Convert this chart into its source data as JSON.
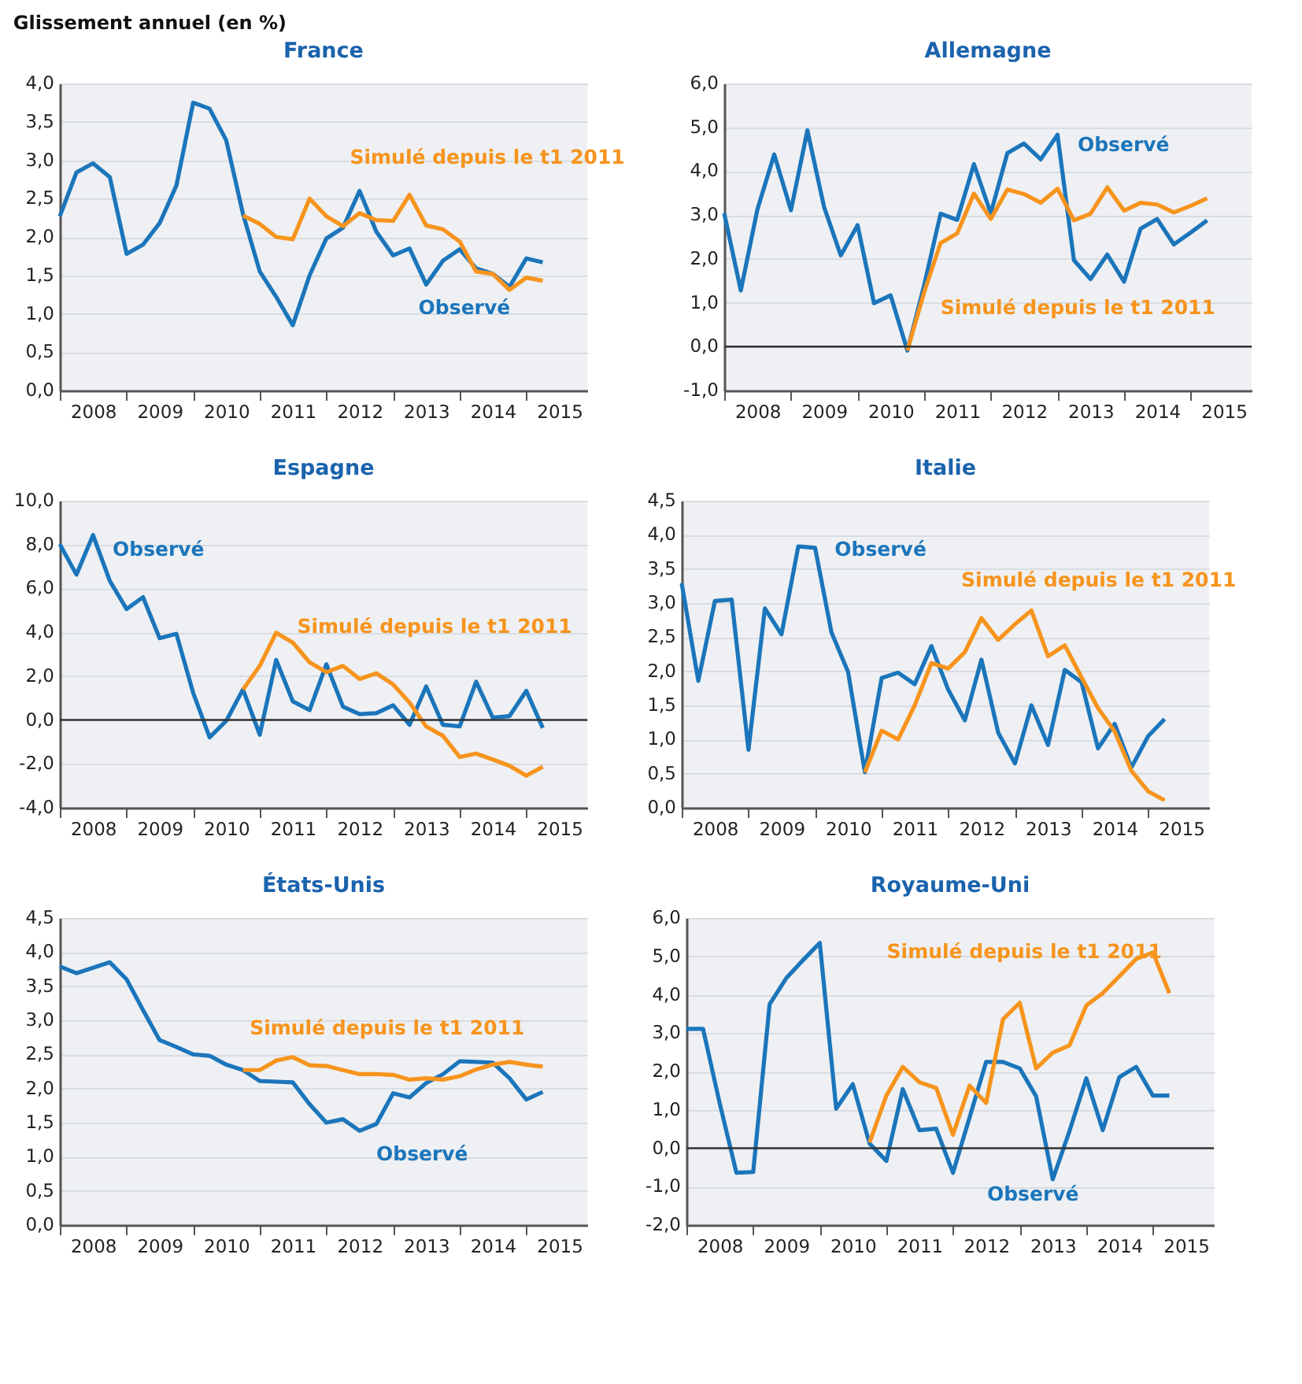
{
  "chart_data": [
    {
      "type": "line",
      "title": "France",
      "ylabel": "Glissement annuel (en %)",
      "x": [
        "2008-01",
        "2008-04",
        "2008-07",
        "2008-10",
        "2009-01",
        "2009-04",
        "2009-07",
        "2009-10",
        "2010-01",
        "2010-04",
        "2010-07",
        "2010-10",
        "2011-01",
        "2011-04",
        "2011-07",
        "2011-10",
        "2012-01",
        "2012-04",
        "2012-07",
        "2012-10",
        "2013-01",
        "2013-04",
        "2013-07",
        "2013-10",
        "2014-01",
        "2014-04",
        "2014-07",
        "2014-10",
        "2015-01",
        "2015-04"
      ],
      "xlim": [
        "2008-01",
        "2015-12"
      ],
      "xticks": [
        {
          "value": "2008-01",
          "label": null
        },
        {
          "value": "2008-07",
          "label": "2008"
        },
        {
          "value": "2009-01",
          "label": null
        },
        {
          "value": "2009-07",
          "label": "2009"
        },
        {
          "value": "2010-01",
          "label": null
        },
        {
          "value": "2010-07",
          "label": "2010"
        },
        {
          "value": "2011-01",
          "label": null
        },
        {
          "value": "2011-07",
          "label": "2011"
        },
        {
          "value": "2012-01",
          "label": null
        },
        {
          "value": "2012-07",
          "label": "2012"
        },
        {
          "value": "2013-01",
          "label": null
        },
        {
          "value": "2013-07",
          "label": "2013"
        },
        {
          "value": "2014-01",
          "label": null
        },
        {
          "value": "2014-07",
          "label": "2014"
        },
        {
          "value": "2015-01",
          "label": null
        },
        {
          "value": "2015-07",
          "label": "2015"
        }
      ],
      "ylim": [
        0,
        4
      ],
      "yticks": [
        {
          "value": 0,
          "label": "0,0"
        },
        {
          "value": 0.5,
          "label": "0,5"
        },
        {
          "value": 1,
          "label": "1,0"
        },
        {
          "value": 1.5,
          "label": "1,5"
        },
        {
          "value": 2,
          "label": "2,0"
        },
        {
          "value": 2.5,
          "label": "2,5"
        },
        {
          "value": 3,
          "label": "3,0"
        },
        {
          "value": 3.5,
          "label": "3,5"
        },
        {
          "value": 4,
          "label": "4,0"
        }
      ],
      "grid": "y",
      "legend": false,
      "series": [
        {
          "name": "Observé",
          "color": "#1b75bb",
          "values": [
            2.27,
            2.84,
            2.96,
            2.78,
            1.78,
            1.9,
            2.18,
            2.67,
            3.75,
            3.67,
            3.26,
            2.3,
            1.55,
            1.22,
            0.85,
            1.5,
            1.98,
            2.12,
            2.6,
            2.07,
            1.76,
            1.85,
            1.38,
            1.69,
            1.84,
            1.59,
            1.52,
            1.35,
            1.72,
            1.67
          ]
        },
        {
          "name": "Simulé depuis le t1 2011",
          "color": "#f7941d",
          "values": [
            null,
            null,
            null,
            null,
            null,
            null,
            null,
            null,
            null,
            null,
            null,
            2.28,
            2.17,
            2.0,
            1.97,
            2.5,
            2.27,
            2.14,
            2.31,
            2.22,
            2.21,
            2.55,
            2.15,
            2.1,
            1.94,
            1.55,
            1.52,
            1.31,
            1.47,
            1.43
          ]
        }
      ]
    },
    {
      "type": "line",
      "title": "Allemagne",
      "x": [
        "2008-01",
        "2008-04",
        "2008-07",
        "2008-10",
        "2009-01",
        "2009-04",
        "2009-07",
        "2009-10",
        "2010-01",
        "2010-04",
        "2010-07",
        "2010-10",
        "2011-01",
        "2011-04",
        "2011-07",
        "2011-10",
        "2012-01",
        "2012-04",
        "2012-07",
        "2012-10",
        "2013-01",
        "2013-04",
        "2013-07",
        "2013-10",
        "2014-01",
        "2014-04",
        "2014-07",
        "2014-10",
        "2015-01",
        "2015-04"
      ],
      "xlim": [
        "2008-01",
        "2015-12"
      ],
      "xticks": [
        {
          "value": "2008-01",
          "label": null
        },
        {
          "value": "2008-07",
          "label": "2008"
        },
        {
          "value": "2009-01",
          "label": null
        },
        {
          "value": "2009-07",
          "label": "2009"
        },
        {
          "value": "2010-01",
          "label": null
        },
        {
          "value": "2010-07",
          "label": "2010"
        },
        {
          "value": "2011-01",
          "label": null
        },
        {
          "value": "2011-07",
          "label": "2011"
        },
        {
          "value": "2012-01",
          "label": null
        },
        {
          "value": "2012-07",
          "label": "2012"
        },
        {
          "value": "2013-01",
          "label": null
        },
        {
          "value": "2013-07",
          "label": "2013"
        },
        {
          "value": "2014-01",
          "label": null
        },
        {
          "value": "2014-07",
          "label": "2014"
        },
        {
          "value": "2015-01",
          "label": null
        },
        {
          "value": "2015-07",
          "label": "2015"
        }
      ],
      "ylim": [
        -1,
        6
      ],
      "yticks": [
        {
          "value": -1,
          "label": "-1,0"
        },
        {
          "value": 0,
          "label": "0,0"
        },
        {
          "value": 1,
          "label": "1,0"
        },
        {
          "value": 2,
          "label": "2,0"
        },
        {
          "value": 3,
          "label": "3,0"
        },
        {
          "value": 4,
          "label": "4,0"
        },
        {
          "value": 5,
          "label": "5,0"
        },
        {
          "value": 6,
          "label": "6,0"
        }
      ],
      "grid": "y",
      "legend": false,
      "ref_lines": [
        {
          "axis": "y",
          "value": 0,
          "color": "#333333"
        }
      ],
      "series": [
        {
          "name": "Observé",
          "color": "#1b75bb",
          "values": [
            3.04,
            1.28,
            3.13,
            4.38,
            3.11,
            4.93,
            3.19,
            2.08,
            2.77,
            0.99,
            1.17,
            -0.09,
            1.4,
            3.03,
            2.89,
            4.16,
            3.04,
            4.41,
            4.63,
            4.27,
            4.83,
            1.97,
            1.54,
            2.1,
            1.48,
            2.69,
            2.91,
            2.33,
            2.6,
            2.88
          ]
        },
        {
          "name": "Simulé depuis le t1 2011",
          "color": "#f7941d",
          "values": [
            null,
            null,
            null,
            null,
            null,
            null,
            null,
            null,
            null,
            null,
            null,
            -0.09,
            1.24,
            2.36,
            2.58,
            3.49,
            2.91,
            3.58,
            3.48,
            3.28,
            3.6,
            2.88,
            3.03,
            3.63,
            3.1,
            3.28,
            3.24,
            3.06,
            3.21,
            3.38
          ]
        }
      ]
    },
    {
      "type": "line",
      "title": "Espagne",
      "x": [
        "2008-01",
        "2008-04",
        "2008-07",
        "2008-10",
        "2009-01",
        "2009-04",
        "2009-07",
        "2009-10",
        "2010-01",
        "2010-04",
        "2010-07",
        "2010-10",
        "2011-01",
        "2011-04",
        "2011-07",
        "2011-10",
        "2012-01",
        "2012-04",
        "2012-07",
        "2012-10",
        "2013-01",
        "2013-04",
        "2013-07",
        "2013-10",
        "2014-01",
        "2014-04",
        "2014-07",
        "2014-10",
        "2015-01",
        "2015-04"
      ],
      "xlim": [
        "2008-01",
        "2015-12"
      ],
      "xticks": [
        {
          "value": "2008-01",
          "label": null
        },
        {
          "value": "2008-07",
          "label": "2008"
        },
        {
          "value": "2009-01",
          "label": null
        },
        {
          "value": "2009-07",
          "label": "2009"
        },
        {
          "value": "2010-01",
          "label": null
        },
        {
          "value": "2010-07",
          "label": "2010"
        },
        {
          "value": "2011-01",
          "label": null
        },
        {
          "value": "2011-07",
          "label": "2011"
        },
        {
          "value": "2012-01",
          "label": null
        },
        {
          "value": "2012-07",
          "label": "2012"
        },
        {
          "value": "2013-01",
          "label": null
        },
        {
          "value": "2013-07",
          "label": "2013"
        },
        {
          "value": "2014-01",
          "label": null
        },
        {
          "value": "2014-07",
          "label": "2014"
        },
        {
          "value": "2015-01",
          "label": null
        },
        {
          "value": "2015-07",
          "label": "2015"
        }
      ],
      "ylim": [
        -4,
        10
      ],
      "yticks": [
        {
          "value": -4,
          "label": "-4,0"
        },
        {
          "value": -2,
          "label": "-2,0"
        },
        {
          "value": 0,
          "label": "0,0"
        },
        {
          "value": 2,
          "label": "2,0"
        },
        {
          "value": 4,
          "label": "4,0"
        },
        {
          "value": 6,
          "label": "6,0"
        },
        {
          "value": 8,
          "label": "8,0"
        },
        {
          "value": 10,
          "label": "10,0"
        }
      ],
      "grid": "y",
      "legend": false,
      "ref_lines": [
        {
          "axis": "y",
          "value": 0,
          "color": "#333333"
        }
      ],
      "series": [
        {
          "name": "Observé",
          "color": "#1b75bb",
          "values": [
            8.02,
            6.63,
            8.43,
            6.34,
            5.06,
            5.6,
            3.73,
            3.93,
            1.24,
            -0.79,
            -0.04,
            1.39,
            -0.67,
            2.74,
            0.85,
            0.45,
            2.54,
            0.61,
            0.27,
            0.31,
            0.67,
            -0.22,
            1.53,
            -0.22,
            -0.29,
            1.75,
            0.11,
            0.18,
            1.33,
            -0.36
          ]
        },
        {
          "name": "Simulé depuis le t1 2011",
          "color": "#f7941d",
          "values": [
            null,
            null,
            null,
            null,
            null,
            null,
            null,
            null,
            null,
            null,
            null,
            1.39,
            2.47,
            3.98,
            3.53,
            2.63,
            2.18,
            2.47,
            1.87,
            2.13,
            1.62,
            0.79,
            -0.29,
            -0.72,
            -1.69,
            -1.53,
            -1.8,
            -2.09,
            -2.54,
            -2.13
          ]
        }
      ]
    },
    {
      "type": "line",
      "title": "Italie",
      "x": [
        "2008-01",
        "2008-04",
        "2008-07",
        "2008-10",
        "2009-01",
        "2009-04",
        "2009-07",
        "2009-10",
        "2010-01",
        "2010-04",
        "2010-07",
        "2010-10",
        "2011-01",
        "2011-04",
        "2011-07",
        "2011-10",
        "2012-01",
        "2012-04",
        "2012-07",
        "2012-10",
        "2013-01",
        "2013-04",
        "2013-07",
        "2013-10",
        "2014-01",
        "2014-04",
        "2014-07",
        "2014-10",
        "2015-01",
        "2015-04"
      ],
      "xlim": [
        "2008-01",
        "2015-12"
      ],
      "xticks": [
        {
          "value": "2008-01",
          "label": null
        },
        {
          "value": "2008-07",
          "label": "2008"
        },
        {
          "value": "2009-01",
          "label": null
        },
        {
          "value": "2009-07",
          "label": "2009"
        },
        {
          "value": "2010-01",
          "label": null
        },
        {
          "value": "2010-07",
          "label": "2010"
        },
        {
          "value": "2011-01",
          "label": null
        },
        {
          "value": "2011-07",
          "label": "2011"
        },
        {
          "value": "2012-01",
          "label": null
        },
        {
          "value": "2012-07",
          "label": "2012"
        },
        {
          "value": "2013-01",
          "label": null
        },
        {
          "value": "2013-07",
          "label": "2013"
        },
        {
          "value": "2014-01",
          "label": null
        },
        {
          "value": "2014-07",
          "label": "2014"
        },
        {
          "value": "2015-01",
          "label": null
        },
        {
          "value": "2015-07",
          "label": "2015"
        }
      ],
      "ylim": [
        0,
        4.5
      ],
      "yticks": [
        {
          "value": 0,
          "label": "0,0"
        },
        {
          "value": 0.5,
          "label": "0,5"
        },
        {
          "value": 1,
          "label": "1,0"
        },
        {
          "value": 1.5,
          "label": "1,5"
        },
        {
          "value": 2,
          "label": "2,0"
        },
        {
          "value": 2.5,
          "label": "2,5"
        },
        {
          "value": 3,
          "label": "3,0"
        },
        {
          "value": 3.5,
          "label": "3,5"
        },
        {
          "value": 4,
          "label": "4,0"
        },
        {
          "value": 4.5,
          "label": "4,5"
        }
      ],
      "grid": "y",
      "legend": false,
      "series": [
        {
          "name": "Observé",
          "color": "#1b75bb",
          "values": [
            3.29,
            1.86,
            3.03,
            3.05,
            0.85,
            2.92,
            2.54,
            3.83,
            3.81,
            2.57,
            1.99,
            0.52,
            1.9,
            1.98,
            1.81,
            2.37,
            1.73,
            1.28,
            2.17,
            1.1,
            0.65,
            1.5,
            0.92,
            2.02,
            1.84,
            0.87,
            1.23,
            0.59,
            1.05,
            1.3
          ]
        },
        {
          "name": "Simulé depuis le t1 2011",
          "color": "#f7941d",
          "values": [
            null,
            null,
            null,
            null,
            null,
            null,
            null,
            null,
            null,
            null,
            null,
            0.52,
            1.13,
            1.0,
            1.5,
            2.12,
            2.04,
            2.28,
            2.78,
            2.46,
            2.69,
            2.89,
            2.22,
            2.38,
            1.91,
            1.46,
            1.12,
            0.54,
            0.24,
            0.11
          ]
        }
      ]
    },
    {
      "type": "line",
      "title": "États-Unis",
      "x": [
        "2008-01",
        "2008-04",
        "2008-07",
        "2008-10",
        "2009-01",
        "2009-04",
        "2009-07",
        "2009-10",
        "2010-01",
        "2010-04",
        "2010-07",
        "2010-10",
        "2011-01",
        "2011-04",
        "2011-07",
        "2011-10",
        "2012-01",
        "2012-04",
        "2012-07",
        "2012-10",
        "2013-01",
        "2013-04",
        "2013-07",
        "2013-10",
        "2014-01",
        "2014-04",
        "2014-07",
        "2014-10",
        "2015-01",
        "2015-04"
      ],
      "xlim": [
        "2008-01",
        "2015-12"
      ],
      "xticks": [
        {
          "value": "2008-01",
          "label": null
        },
        {
          "value": "2008-07",
          "label": "2008"
        },
        {
          "value": "2009-01",
          "label": null
        },
        {
          "value": "2009-07",
          "label": "2009"
        },
        {
          "value": "2010-01",
          "label": null
        },
        {
          "value": "2010-07",
          "label": "2010"
        },
        {
          "value": "2011-01",
          "label": null
        },
        {
          "value": "2011-07",
          "label": "2011"
        },
        {
          "value": "2012-01",
          "label": null
        },
        {
          "value": "2012-07",
          "label": "2012"
        },
        {
          "value": "2013-01",
          "label": null
        },
        {
          "value": "2013-07",
          "label": "2013"
        },
        {
          "value": "2014-01",
          "label": null
        },
        {
          "value": "2014-07",
          "label": "2014"
        },
        {
          "value": "2015-01",
          "label": null
        },
        {
          "value": "2015-07",
          "label": "2015"
        }
      ],
      "ylim": [
        0,
        4.5
      ],
      "yticks": [
        {
          "value": 0,
          "label": "0,0"
        },
        {
          "value": 0.5,
          "label": "0,5"
        },
        {
          "value": 1,
          "label": "1,0"
        },
        {
          "value": 1.5,
          "label": "1,5"
        },
        {
          "value": 2,
          "label": "2,0"
        },
        {
          "value": 2.5,
          "label": "2,5"
        },
        {
          "value": 3,
          "label": "3,0"
        },
        {
          "value": 3.5,
          "label": "3,5"
        },
        {
          "value": 4,
          "label": "4,0"
        },
        {
          "value": 4.5,
          "label": "4,5"
        }
      ],
      "grid": "y",
      "legend": false,
      "series": [
        {
          "name": "Observé",
          "color": "#1b75bb",
          "values": [
            3.79,
            3.69,
            3.77,
            3.85,
            3.6,
            3.15,
            2.71,
            2.61,
            2.5,
            2.48,
            2.35,
            2.27,
            2.11,
            2.1,
            2.09,
            1.77,
            1.5,
            1.55,
            1.38,
            1.48,
            1.93,
            1.87,
            2.08,
            2.21,
            2.4,
            2.39,
            2.38,
            2.15,
            1.84,
            1.95
          ]
        },
        {
          "name": "Simulé depuis le t1 2011",
          "color": "#f7941d",
          "values": [
            null,
            null,
            null,
            null,
            null,
            null,
            null,
            null,
            null,
            null,
            null,
            2.27,
            2.27,
            2.41,
            2.46,
            2.34,
            2.33,
            2.27,
            2.21,
            2.21,
            2.2,
            2.13,
            2.15,
            2.13,
            2.18,
            2.28,
            2.35,
            2.39,
            2.35,
            2.32
          ]
        }
      ]
    },
    {
      "type": "line",
      "title": "Royaume-Uni",
      "x": [
        "2008-01",
        "2008-04",
        "2008-07",
        "2008-10",
        "2009-01",
        "2009-04",
        "2009-07",
        "2009-10",
        "2010-01",
        "2010-04",
        "2010-07",
        "2010-10",
        "2011-01",
        "2011-04",
        "2011-07",
        "2011-10",
        "2012-01",
        "2012-04",
        "2012-07",
        "2012-10",
        "2013-01",
        "2013-04",
        "2013-07",
        "2013-10",
        "2014-01",
        "2014-04",
        "2014-07",
        "2014-10",
        "2015-01",
        "2015-04"
      ],
      "xlim": [
        "2008-01",
        "2015-12"
      ],
      "xticks": [
        {
          "value": "2008-01",
          "label": null
        },
        {
          "value": "2008-07",
          "label": "2008"
        },
        {
          "value": "2009-01",
          "label": null
        },
        {
          "value": "2009-07",
          "label": "2009"
        },
        {
          "value": "2010-01",
          "label": null
        },
        {
          "value": "2010-07",
          "label": "2010"
        },
        {
          "value": "2011-01",
          "label": null
        },
        {
          "value": "2011-07",
          "label": "2011"
        },
        {
          "value": "2012-01",
          "label": null
        },
        {
          "value": "2012-07",
          "label": "2012"
        },
        {
          "value": "2013-01",
          "label": null
        },
        {
          "value": "2013-07",
          "label": "2013"
        },
        {
          "value": "2014-01",
          "label": null
        },
        {
          "value": "2014-07",
          "label": "2014"
        },
        {
          "value": "2015-01",
          "label": null
        },
        {
          "value": "2015-07",
          "label": "2015"
        }
      ],
      "ylim": [
        -2,
        6
      ],
      "yticks": [
        {
          "value": -2,
          "label": "-2,0"
        },
        {
          "value": -1,
          "label": "-1,0"
        },
        {
          "value": 0,
          "label": "0,0"
        },
        {
          "value": 1,
          "label": "1,0"
        },
        {
          "value": 2,
          "label": "2,0"
        },
        {
          "value": 3,
          "label": "3,0"
        },
        {
          "value": 4,
          "label": "4,0"
        },
        {
          "value": 5,
          "label": "5,0"
        },
        {
          "value": 6,
          "label": "6,0"
        }
      ],
      "grid": "y",
      "legend": false,
      "ref_lines": [
        {
          "axis": "y",
          "value": 0,
          "color": "#333333"
        }
      ],
      "series": [
        {
          "name": "Observé",
          "color": "#1b75bb",
          "values": [
            3.11,
            3.11,
            1.18,
            -0.64,
            -0.62,
            3.75,
            4.43,
            4.9,
            5.35,
            1.03,
            1.67,
            0.12,
            -0.33,
            1.54,
            0.47,
            0.51,
            -0.64,
            0.8,
            2.25,
            2.25,
            2.08,
            1.35,
            -0.81,
            0.45,
            1.82,
            0.47,
            1.85,
            2.12,
            1.37,
            1.37
          ]
        },
        {
          "name": "Simulé depuis le t1 2011",
          "color": "#f7941d",
          "values": [
            null,
            null,
            null,
            null,
            null,
            null,
            null,
            null,
            null,
            null,
            null,
            0.15,
            1.37,
            2.12,
            1.72,
            1.57,
            0.35,
            1.63,
            1.18,
            3.36,
            3.79,
            2.08,
            2.49,
            2.68,
            3.72,
            4.04,
            4.48,
            4.93,
            5.1,
            4.04
          ]
        }
      ]
    }
  ]
}
